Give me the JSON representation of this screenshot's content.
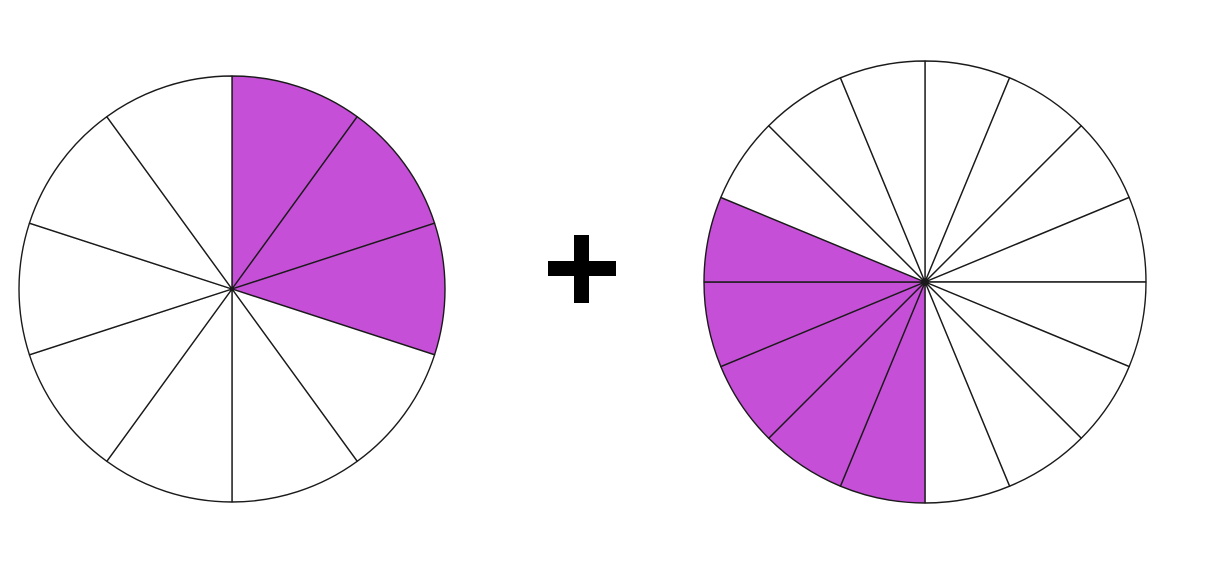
{
  "diagram": {
    "type": "fraction-addition",
    "shaded_color": "#c54fd6",
    "unshaded_color": "#ffffff",
    "stroke_color": "#1a1a1a",
    "operator": "+",
    "operator_color": "#000000"
  },
  "fractions": [
    {
      "name": "left-fraction",
      "total_parts": 10,
      "shaded_parts": 3,
      "shaded_slice_indices": [
        0,
        1,
        2
      ]
    },
    {
      "name": "right-fraction",
      "total_parts": 16,
      "shaded_parts": 5,
      "shaded_slice_indices": [
        8,
        9,
        10,
        11,
        12
      ]
    }
  ]
}
